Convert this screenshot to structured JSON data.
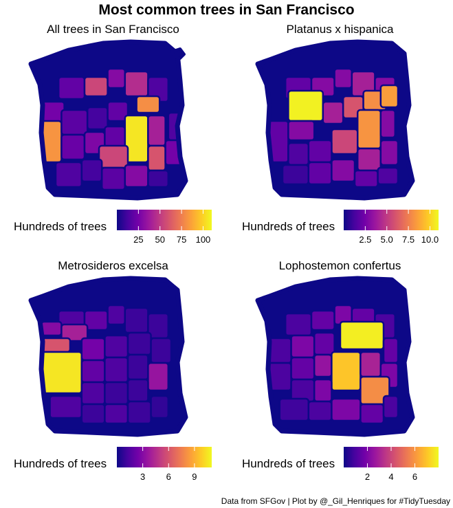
{
  "title": "Most common trees in San Francisco",
  "caption": "Data from SFGov | Plot by @_Gil_Henriques for #TidyTuesday",
  "palette": [
    "#0d0887",
    "#46039f",
    "#7201a8",
    "#9c179e",
    "#bd3786",
    "#d8576b",
    "#ed7953",
    "#fb9f3a",
    "#fdca26",
    "#f0f921"
  ],
  "chart_data": [
    {
      "type": "choropleth",
      "title": "All trees in San Francisco",
      "legend_title": "Hundreds of trees",
      "legend_placement": "bottom",
      "range": [
        0,
        110
      ],
      "ticks": [
        25,
        50,
        75,
        100
      ],
      "tick_labels": [
        "25",
        "50",
        "75",
        "100"
      ],
      "regions": [
        {
          "a": 0.12,
          "b": 0.12,
          "w": 0.18,
          "h": 0.16,
          "v": 20
        },
        {
          "a": 0.3,
          "b": 0.12,
          "w": 0.16,
          "h": 0.14,
          "v": 55
        },
        {
          "a": 0.46,
          "b": 0.06,
          "w": 0.12,
          "h": 0.14,
          "v": 30
        },
        {
          "a": 0.58,
          "b": 0.08,
          "w": 0.16,
          "h": 0.18,
          "v": 45
        },
        {
          "a": 0.74,
          "b": 0.12,
          "w": 0.14,
          "h": 0.18,
          "v": 15
        },
        {
          "a": 0.0,
          "b": 0.3,
          "w": 0.16,
          "h": 0.18,
          "v": 25
        },
        {
          "a": 0.0,
          "b": 0.44,
          "w": 0.14,
          "h": 0.3,
          "v": 82
        },
        {
          "a": 0.14,
          "b": 0.36,
          "w": 0.18,
          "h": 0.18,
          "v": 18
        },
        {
          "a": 0.32,
          "b": 0.34,
          "w": 0.14,
          "h": 0.16,
          "v": 12
        },
        {
          "a": 0.46,
          "b": 0.3,
          "w": 0.14,
          "h": 0.14,
          "v": 20
        },
        {
          "a": 0.66,
          "b": 0.26,
          "w": 0.16,
          "h": 0.12,
          "v": 80
        },
        {
          "a": 0.58,
          "b": 0.4,
          "w": 0.16,
          "h": 0.34,
          "v": 105
        },
        {
          "a": 0.74,
          "b": 0.4,
          "w": 0.12,
          "h": 0.22,
          "v": 40
        },
        {
          "a": 0.88,
          "b": 0.38,
          "w": 0.1,
          "h": 0.2,
          "v": 15
        },
        {
          "a": 0.14,
          "b": 0.54,
          "w": 0.16,
          "h": 0.18,
          "v": 22
        },
        {
          "a": 0.3,
          "b": 0.52,
          "w": 0.14,
          "h": 0.16,
          "v": 28
        },
        {
          "a": 0.44,
          "b": 0.48,
          "w": 0.14,
          "h": 0.16,
          "v": 20
        },
        {
          "a": 0.4,
          "b": 0.62,
          "w": 0.2,
          "h": 0.16,
          "v": 55
        },
        {
          "a": 0.74,
          "b": 0.62,
          "w": 0.12,
          "h": 0.18,
          "v": 60
        },
        {
          "a": 0.86,
          "b": 0.58,
          "w": 0.12,
          "h": 0.18,
          "v": 25
        },
        {
          "a": 0.1,
          "b": 0.74,
          "w": 0.18,
          "h": 0.18,
          "v": 15
        },
        {
          "a": 0.28,
          "b": 0.72,
          "w": 0.14,
          "h": 0.16,
          "v": 12
        },
        {
          "a": 0.42,
          "b": 0.78,
          "w": 0.16,
          "h": 0.16,
          "v": 18
        },
        {
          "a": 0.58,
          "b": 0.76,
          "w": 0.16,
          "h": 0.16,
          "v": 30
        },
        {
          "a": 0.74,
          "b": 0.8,
          "w": 0.14,
          "h": 0.12,
          "v": 10
        }
      ]
    },
    {
      "type": "choropleth",
      "title": "Platanus x hispanica",
      "legend_title": "Hundreds of trees",
      "legend_placement": "bottom",
      "range": [
        0,
        11
      ],
      "ticks": [
        2.5,
        5.0,
        7.5,
        10.0
      ],
      "tick_labels": [
        "2.5",
        "5.0",
        "7.5",
        "10.0"
      ],
      "regions": [
        {
          "a": 0.12,
          "b": 0.12,
          "w": 0.18,
          "h": 0.16,
          "v": 2
        },
        {
          "a": 0.3,
          "b": 0.12,
          "w": 0.16,
          "h": 0.14,
          "v": 3
        },
        {
          "a": 0.46,
          "b": 0.06,
          "w": 0.12,
          "h": 0.14,
          "v": 3
        },
        {
          "a": 0.58,
          "b": 0.08,
          "w": 0.16,
          "h": 0.18,
          "v": 4
        },
        {
          "a": 0.74,
          "b": 0.12,
          "w": 0.14,
          "h": 0.18,
          "v": 3
        },
        {
          "a": 0.14,
          "b": 0.22,
          "w": 0.24,
          "h": 0.22,
          "v": 10.8
        },
        {
          "a": 0.0,
          "b": 0.44,
          "w": 0.14,
          "h": 0.3,
          "v": 2
        },
        {
          "a": 0.14,
          "b": 0.44,
          "w": 0.18,
          "h": 0.14,
          "v": 3
        },
        {
          "a": 0.38,
          "b": 0.3,
          "w": 0.14,
          "h": 0.16,
          "v": 4
        },
        {
          "a": 0.52,
          "b": 0.26,
          "w": 0.14,
          "h": 0.16,
          "v": 6
        },
        {
          "a": 0.66,
          "b": 0.22,
          "w": 0.16,
          "h": 0.14,
          "v": 8
        },
        {
          "a": 0.78,
          "b": 0.18,
          "w": 0.12,
          "h": 0.16,
          "v": 8.5
        },
        {
          "a": 0.62,
          "b": 0.36,
          "w": 0.16,
          "h": 0.28,
          "v": 8.2
        },
        {
          "a": 0.78,
          "b": 0.36,
          "w": 0.1,
          "h": 0.2,
          "v": 3
        },
        {
          "a": 0.44,
          "b": 0.5,
          "w": 0.18,
          "h": 0.18,
          "v": 5.5
        },
        {
          "a": 0.28,
          "b": 0.58,
          "w": 0.16,
          "h": 0.16,
          "v": 2
        },
        {
          "a": 0.14,
          "b": 0.6,
          "w": 0.14,
          "h": 0.16,
          "v": 1.5
        },
        {
          "a": 0.62,
          "b": 0.64,
          "w": 0.16,
          "h": 0.16,
          "v": 4
        },
        {
          "a": 0.78,
          "b": 0.58,
          "w": 0.12,
          "h": 0.18,
          "v": 3
        },
        {
          "a": 0.1,
          "b": 0.76,
          "w": 0.18,
          "h": 0.14,
          "v": 1
        },
        {
          "a": 0.28,
          "b": 0.74,
          "w": 0.16,
          "h": 0.16,
          "v": 2
        },
        {
          "a": 0.44,
          "b": 0.72,
          "w": 0.16,
          "h": 0.16,
          "v": 3
        },
        {
          "a": 0.6,
          "b": 0.8,
          "w": 0.16,
          "h": 0.12,
          "v": 2
        },
        {
          "a": 0.76,
          "b": 0.78,
          "w": 0.14,
          "h": 0.12,
          "v": 1.5
        }
      ]
    },
    {
      "type": "choropleth",
      "title": "Metrosideros excelsa",
      "legend_title": "Hundreds of trees",
      "legend_placement": "bottom",
      "range": [
        0,
        11
      ],
      "ticks": [
        3,
        6,
        9
      ],
      "tick_labels": [
        "3",
        "6",
        "9"
      ],
      "regions": [
        {
          "a": 0.12,
          "b": 0.1,
          "w": 0.18,
          "h": 0.14,
          "v": 1.5
        },
        {
          "a": 0.3,
          "b": 0.1,
          "w": 0.16,
          "h": 0.14,
          "v": 2
        },
        {
          "a": 0.46,
          "b": 0.06,
          "w": 0.12,
          "h": 0.14,
          "v": 1.5
        },
        {
          "a": 0.58,
          "b": 0.08,
          "w": 0.16,
          "h": 0.18,
          "v": 1
        },
        {
          "a": 0.74,
          "b": 0.12,
          "w": 0.14,
          "h": 0.18,
          "v": 1
        },
        {
          "a": 0.0,
          "b": 0.18,
          "w": 0.14,
          "h": 0.1,
          "v": 3
        },
        {
          "a": 0.14,
          "b": 0.2,
          "w": 0.18,
          "h": 0.12,
          "v": 4
        },
        {
          "a": 0.0,
          "b": 0.3,
          "w": 0.2,
          "h": 0.1,
          "v": 6
        },
        {
          "a": 0.0,
          "b": 0.4,
          "w": 0.28,
          "h": 0.3,
          "v": 10.5
        },
        {
          "a": 0.28,
          "b": 0.3,
          "w": 0.16,
          "h": 0.16,
          "v": 2.5
        },
        {
          "a": 0.44,
          "b": 0.28,
          "w": 0.16,
          "h": 0.16,
          "v": 1.5
        },
        {
          "a": 0.6,
          "b": 0.26,
          "w": 0.16,
          "h": 0.16,
          "v": 1
        },
        {
          "a": 0.76,
          "b": 0.3,
          "w": 0.14,
          "h": 0.18,
          "v": 1
        },
        {
          "a": 0.28,
          "b": 0.46,
          "w": 0.16,
          "h": 0.16,
          "v": 2
        },
        {
          "a": 0.44,
          "b": 0.44,
          "w": 0.16,
          "h": 0.18,
          "v": 1.5
        },
        {
          "a": 0.6,
          "b": 0.42,
          "w": 0.14,
          "h": 0.18,
          "v": 1
        },
        {
          "a": 0.74,
          "b": 0.48,
          "w": 0.14,
          "h": 0.2,
          "v": 3.5
        },
        {
          "a": 0.28,
          "b": 0.62,
          "w": 0.16,
          "h": 0.16,
          "v": 1.5
        },
        {
          "a": 0.44,
          "b": 0.62,
          "w": 0.16,
          "h": 0.16,
          "v": 1
        },
        {
          "a": 0.6,
          "b": 0.6,
          "w": 0.14,
          "h": 0.16,
          "v": 1
        },
        {
          "a": 0.06,
          "b": 0.72,
          "w": 0.22,
          "h": 0.16,
          "v": 1.5
        },
        {
          "a": 0.28,
          "b": 0.78,
          "w": 0.16,
          "h": 0.14,
          "v": 1
        },
        {
          "a": 0.44,
          "b": 0.78,
          "w": 0.16,
          "h": 0.14,
          "v": 1.5
        },
        {
          "a": 0.6,
          "b": 0.76,
          "w": 0.16,
          "h": 0.16,
          "v": 1
        },
        {
          "a": 0.76,
          "b": 0.72,
          "w": 0.12,
          "h": 0.16,
          "v": 0.8
        }
      ]
    },
    {
      "type": "choropleth",
      "title": "Lophostemon confertus",
      "legend_title": "Hundreds of trees",
      "legend_placement": "bottom",
      "range": [
        0,
        8
      ],
      "ticks": [
        2,
        4,
        6
      ],
      "tick_labels": [
        "2",
        "4",
        "6"
      ],
      "regions": [
        {
          "a": 0.12,
          "b": 0.12,
          "w": 0.18,
          "h": 0.16,
          "v": 1
        },
        {
          "a": 0.3,
          "b": 0.1,
          "w": 0.16,
          "h": 0.14,
          "v": 1.5
        },
        {
          "a": 0.46,
          "b": 0.06,
          "w": 0.12,
          "h": 0.14,
          "v": 2
        },
        {
          "a": 0.58,
          "b": 0.08,
          "w": 0.16,
          "h": 0.18,
          "v": 1.5
        },
        {
          "a": 0.74,
          "b": 0.12,
          "w": 0.14,
          "h": 0.18,
          "v": 1
        },
        {
          "a": 0.0,
          "b": 0.3,
          "w": 0.16,
          "h": 0.18,
          "v": 1
        },
        {
          "a": 0.16,
          "b": 0.28,
          "w": 0.16,
          "h": 0.16,
          "v": 2
        },
        {
          "a": 0.32,
          "b": 0.26,
          "w": 0.14,
          "h": 0.16,
          "v": 1.5
        },
        {
          "a": 0.5,
          "b": 0.18,
          "w": 0.3,
          "h": 0.2,
          "v": 7.8
        },
        {
          "a": 0.8,
          "b": 0.3,
          "w": 0.1,
          "h": 0.18,
          "v": 1.5
        },
        {
          "a": 0.0,
          "b": 0.48,
          "w": 0.16,
          "h": 0.2,
          "v": 1
        },
        {
          "a": 0.16,
          "b": 0.44,
          "w": 0.16,
          "h": 0.16,
          "v": 1.5
        },
        {
          "a": 0.32,
          "b": 0.42,
          "w": 0.12,
          "h": 0.16,
          "v": 2.5
        },
        {
          "a": 0.44,
          "b": 0.4,
          "w": 0.2,
          "h": 0.28,
          "v": 7
        },
        {
          "a": 0.64,
          "b": 0.4,
          "w": 0.14,
          "h": 0.18,
          "v": 3
        },
        {
          "a": 0.78,
          "b": 0.48,
          "w": 0.12,
          "h": 0.18,
          "v": 2
        },
        {
          "a": 0.16,
          "b": 0.6,
          "w": 0.16,
          "h": 0.16,
          "v": 1
        },
        {
          "a": 0.32,
          "b": 0.6,
          "w": 0.12,
          "h": 0.16,
          "v": 2
        },
        {
          "a": 0.64,
          "b": 0.58,
          "w": 0.2,
          "h": 0.2,
          "v": 5.8
        },
        {
          "a": 0.08,
          "b": 0.74,
          "w": 0.2,
          "h": 0.16,
          "v": 0.8
        },
        {
          "a": 0.28,
          "b": 0.76,
          "w": 0.16,
          "h": 0.14,
          "v": 1
        },
        {
          "a": 0.44,
          "b": 0.74,
          "w": 0.2,
          "h": 0.16,
          "v": 2
        },
        {
          "a": 0.64,
          "b": 0.78,
          "w": 0.16,
          "h": 0.14,
          "v": 1.5
        },
        {
          "a": 0.8,
          "b": 0.72,
          "w": 0.1,
          "h": 0.16,
          "v": 1
        }
      ]
    }
  ]
}
